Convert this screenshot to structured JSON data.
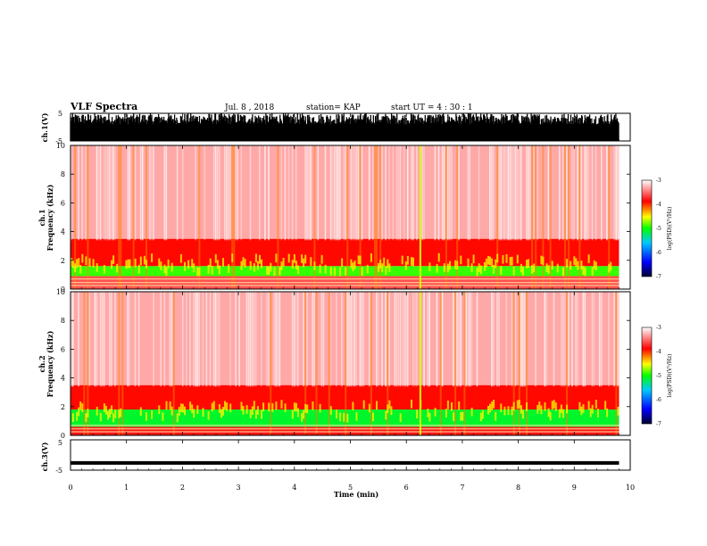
{
  "header": {
    "title": "VLF Spectra",
    "date": "Jul. 8 , 2018",
    "station": "station= KAP",
    "start": "start UT =  4 : 30 : 1"
  },
  "chart_data": [
    {
      "type": "line",
      "panel": "ch1-waveform",
      "ylabel": "ch.1(V)",
      "ylim": [
        -5,
        5
      ],
      "yticks": [
        "5",
        "-5"
      ],
      "xlim": [
        0,
        10
      ],
      "note": "dense high-amplitude waveform spikes across the full 0–9.8 min record"
    },
    {
      "type": "heatmap",
      "panel": "ch1-spectrogram",
      "ylabel": "ch.1\nFrequency (kHz)",
      "ylabel_lines": [
        "ch.1",
        "Frequency (kHz)"
      ],
      "ylim": [
        0,
        10
      ],
      "yticks": [
        "0",
        "2",
        "4",
        "6",
        "8",
        "10"
      ],
      "xlim": [
        0,
        10
      ],
      "data_extent_min": [
        0,
        9.8
      ],
      "colorbar": {
        "label": "log(PSD)(V²/Hz)",
        "range": [
          -7,
          -3
        ],
        "ticks": [
          "-3",
          "-4",
          "-5",
          "-6",
          "-7"
        ]
      },
      "bands": [
        {
          "f_kHz": [
            0.0,
            0.9
          ],
          "level": -3.6
        },
        {
          "f_kHz": [
            0.9,
            1.6
          ],
          "level": -4.9
        },
        {
          "f_kHz": [
            1.6,
            3.5
          ],
          "level": -3.9
        },
        {
          "f_kHz": [
            3.5,
            10.0
          ],
          "level": -3.3
        }
      ],
      "features": [
        {
          "t_min": 6.25,
          "note": "broadband impulsive line"
        }
      ]
    },
    {
      "type": "heatmap",
      "panel": "ch2-spectrogram",
      "ylabel": "ch.2\nFrequency (kHz)",
      "ylabel_lines": [
        "ch.2",
        "Frequency (kHz)"
      ],
      "ylim": [
        0,
        10
      ],
      "yticks": [
        "0",
        "2",
        "4",
        "6",
        "8",
        "10"
      ],
      "xlim": [
        0,
        10
      ],
      "data_extent_min": [
        0,
        9.8
      ],
      "colorbar": {
        "label": "log(PSD)(V²/Hz)",
        "range": [
          -7,
          -3
        ],
        "ticks": [
          "-3",
          "-4",
          "-5",
          "-6",
          "-7"
        ]
      },
      "bands": [
        {
          "f_kHz": [
            0.0,
            0.6
          ],
          "level": -3.8
        },
        {
          "f_kHz": [
            0.6,
            1.8
          ],
          "level": -5.1
        },
        {
          "f_kHz": [
            1.8,
            3.5
          ],
          "level": -3.9
        },
        {
          "f_kHz": [
            3.5,
            10.0
          ],
          "level": -3.3
        }
      ],
      "features": [
        {
          "t_min": 6.25,
          "note": "broadband impulsive line"
        }
      ]
    },
    {
      "type": "line",
      "panel": "ch3-waveform",
      "ylabel": "ch.3(V)",
      "ylim": [
        -5,
        5
      ],
      "yticks": [
        "5",
        "-5"
      ],
      "xlim": [
        0,
        10
      ],
      "xlabel": "Time  (min)",
      "xticks": [
        "0",
        "1",
        "2",
        "3",
        "4",
        "5",
        "6",
        "7",
        "8",
        "9",
        "10"
      ],
      "series": [
        {
          "x": [
            0,
            9.8
          ],
          "y": [
            -2.6,
            -2.6
          ]
        }
      ]
    }
  ],
  "colors": {
    "colormap": [
      "#000030",
      "#0000ff",
      "#00c8ff",
      "#00ff00",
      "#ffff00",
      "#ff0000",
      "#ffffff"
    ]
  }
}
